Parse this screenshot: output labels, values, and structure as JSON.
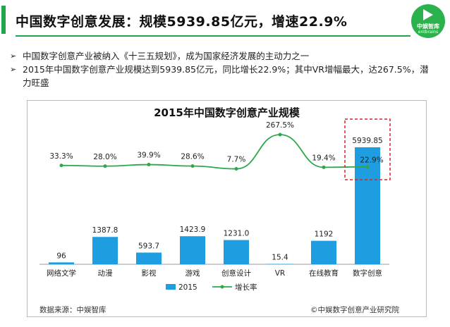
{
  "header": {
    "title": "中国数字创意发展：规模5939.85亿元，增速22.9%",
    "logo_cn": "中娱智库",
    "logo_en": "entbrains"
  },
  "bullets": [
    "中国数字创意产业被纳入《十三五规划》，成为国家经济发展的主动力之一",
    "2015年中国数字创意产业规模达到5939.85亿元，同比增长22.9%；其中VR增幅最大，达267.5%，潜力旺盛"
  ],
  "colors": {
    "accent": "#1fa64a",
    "bar": "#1e9ee0",
    "line": "#2ca84a",
    "highlight_box": "#e02020"
  },
  "chart_data": {
    "type": "bar",
    "title": "2015年中国数字创意产业规模",
    "categories": [
      "网络文学",
      "动漫",
      "影视",
      "游戏",
      "创意设计",
      "VR",
      "在线教育",
      "数字创意"
    ],
    "series": [
      {
        "name": "2015",
        "type": "bar",
        "values": [
          96,
          1387.8,
          593.7,
          1423.9,
          1231.0,
          15.4,
          1192,
          5939.85
        ],
        "labels": [
          "96",
          "1387.8",
          "593.7",
          "1423.9",
          "1231.0",
          "15.4",
          "1192",
          "5939.85"
        ]
      },
      {
        "name": "增长率",
        "type": "line",
        "values": [
          33.3,
          28.0,
          39.9,
          28.6,
          7.7,
          267.5,
          19.4,
          22.9
        ],
        "labels": [
          "33.3%",
          "28.0%",
          "39.9%",
          "28.6%",
          "7.7%",
          "267.5%",
          "19.4%",
          "22.9%"
        ]
      }
    ],
    "legend": {
      "placement": "bottom",
      "entries": [
        "2015",
        "增长率"
      ]
    },
    "highlight": "数字创意",
    "grid": false
  },
  "footer": {
    "source": "数据来源：中娱智库",
    "copyright": "©中娱数字创意产业研究院"
  }
}
